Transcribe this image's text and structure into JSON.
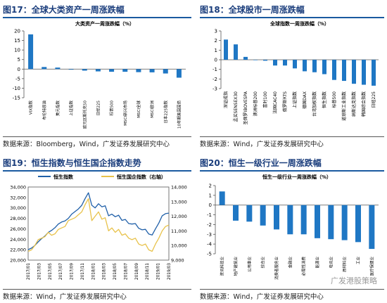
{
  "panels": [
    {
      "title": "图17：全球大类资产一周涨跌幅",
      "source": "数据来源：Bloomberg，Wind，广发证券发展研究中心"
    },
    {
      "title": "图18：全球股市一周涨跌幅",
      "source": "数据来源：Wind，广发证券发展研究中心"
    },
    {
      "title": "图19：恒生指数与恒生国企指数走势",
      "source": "数据来源：Wind，广发证券发展研究中心"
    },
    {
      "title": "图20：恒生一级行业一周涨跌幅",
      "source": "数据来源：Wind，广发证券发展研究中心"
    }
  ],
  "watermark": "广发港股策略",
  "chart_data": [
    {
      "type": "bar",
      "title": "大类资产一周涨跌幅（%）",
      "categories": [
        "VIX指数",
        "布伦特原油",
        "美元指数",
        "上证指数",
        "欧元区斯托克50",
        "日经225",
        "标普500",
        "MSCI新兴市场",
        "MSCI全球",
        "MSCI欧洲",
        "日本225指数",
        "10年期美国国债"
      ],
      "values": [
        18.2,
        1.1,
        0.8,
        -0.3,
        -0.8,
        -1.2,
        -1.4,
        -1.4,
        -1.6,
        -1.7,
        -2.3,
        -4.5
      ],
      "ylim": [
        -15,
        20
      ],
      "yticks": [
        -15,
        -10,
        -5,
        0,
        5,
        10,
        15,
        20
      ],
      "color": "#1f77c4"
    },
    {
      "type": "bar",
      "title": "全球指数一周涨跌幅（%）",
      "categories": [
        "深证成指",
        "孟买SENSEX30",
        "圣保罗IBOVESPA",
        "澳洲标普200",
        "富时100",
        "法国CAC40",
        "俄罗斯RTS",
        "上证指数",
        "德国DAX",
        "台湾加权指数",
        "恒生指数",
        "标普500",
        "道琼斯工业指数",
        "纳斯达克指数",
        "韩国综合指数",
        "日经225"
      ],
      "values": [
        2.1,
        1.6,
        0.3,
        0.0,
        -0.1,
        -0.6,
        -0.6,
        -0.9,
        -1.2,
        -1.3,
        -1.5,
        -2.1,
        -2.2,
        -2.5,
        -2.6,
        -2.7
      ],
      "ylim": [
        -3,
        3
      ],
      "yticks": [
        -3,
        -2,
        -1,
        0,
        1,
        2,
        3
      ],
      "color": "#1f77c4"
    },
    {
      "type": "line",
      "series": [
        {
          "name": "恒生指数",
          "color": "#1f5fa8",
          "axis": "left",
          "values": [
            22000,
            22300,
            22800,
            23500,
            24100,
            24600,
            25300,
            25700,
            26200,
            26900,
            27300,
            27500,
            28000,
            28800,
            29300,
            29800,
            30500,
            31800,
            32900,
            30500,
            30000,
            30800,
            30200,
            30400,
            28500,
            28800,
            28300,
            28600,
            27600,
            27800,
            27000,
            26900,
            27000,
            26100,
            25800,
            25900,
            25000,
            24800,
            26000,
            27100,
            28500,
            28900,
            29000
          ]
        },
        {
          "name": "恒生国企指数（右轴）",
          "color": "#e8c24a",
          "axis": "right",
          "values": [
            9600,
            9700,
            10000,
            10400,
            10500,
            10600,
            10900,
            10700,
            10800,
            11100,
            11200,
            11300,
            11700,
            11800,
            11900,
            12100,
            12300,
            12800,
            13200,
            11700,
            12000,
            12300,
            11800,
            11900,
            11000,
            11200,
            10900,
            11100,
            10700,
            10800,
            10500,
            10400,
            10500,
            10100,
            10000,
            10100,
            9700,
            9600,
            10100,
            10500,
            11000,
            11300,
            11400
          ]
        }
      ],
      "x_labels": [
        "2017/01",
        "2017/03",
        "2017/05",
        "2017/07",
        "2017/09",
        "2017/11",
        "2018/01",
        "2018/03",
        "2018/05",
        "2018/07",
        "2018/09",
        "2018/11",
        "2019/01",
        "2019/03"
      ],
      "ylim_left": [
        20000,
        34000
      ],
      "yticks_left": [
        "20,000",
        "22,000",
        "24,000",
        "26,000",
        "28,000",
        "30,000",
        "32,000",
        "34,000"
      ],
      "ylim_right": [
        9000,
        14000
      ],
      "yticks_right": [
        "9,000",
        "10,000",
        "11,000",
        "12,000",
        "13,000",
        "14,000"
      ]
    },
    {
      "type": "bar",
      "title": "恒生一级行业一周涨跌幅（%）",
      "categories": [
        "资讯科技业",
        "地产建筑业",
        "公用事业",
        "综合业",
        "消费者服务业",
        "金融业",
        "必需性消费",
        "能源业",
        "电讯业",
        "原材料业",
        "工业",
        "医疗保健业"
      ],
      "values": [
        1.4,
        -1.6,
        -1.7,
        -2.1,
        -2.5,
        -3.0,
        -3.0,
        -3.4,
        -3.5,
        -3.6,
        -3.8,
        -4.5
      ],
      "ylim": [
        -5,
        2
      ],
      "yticks": [
        -5,
        -4,
        -3,
        -2,
        -1,
        0,
        1,
        2
      ],
      "color": "#1f77c4"
    }
  ]
}
